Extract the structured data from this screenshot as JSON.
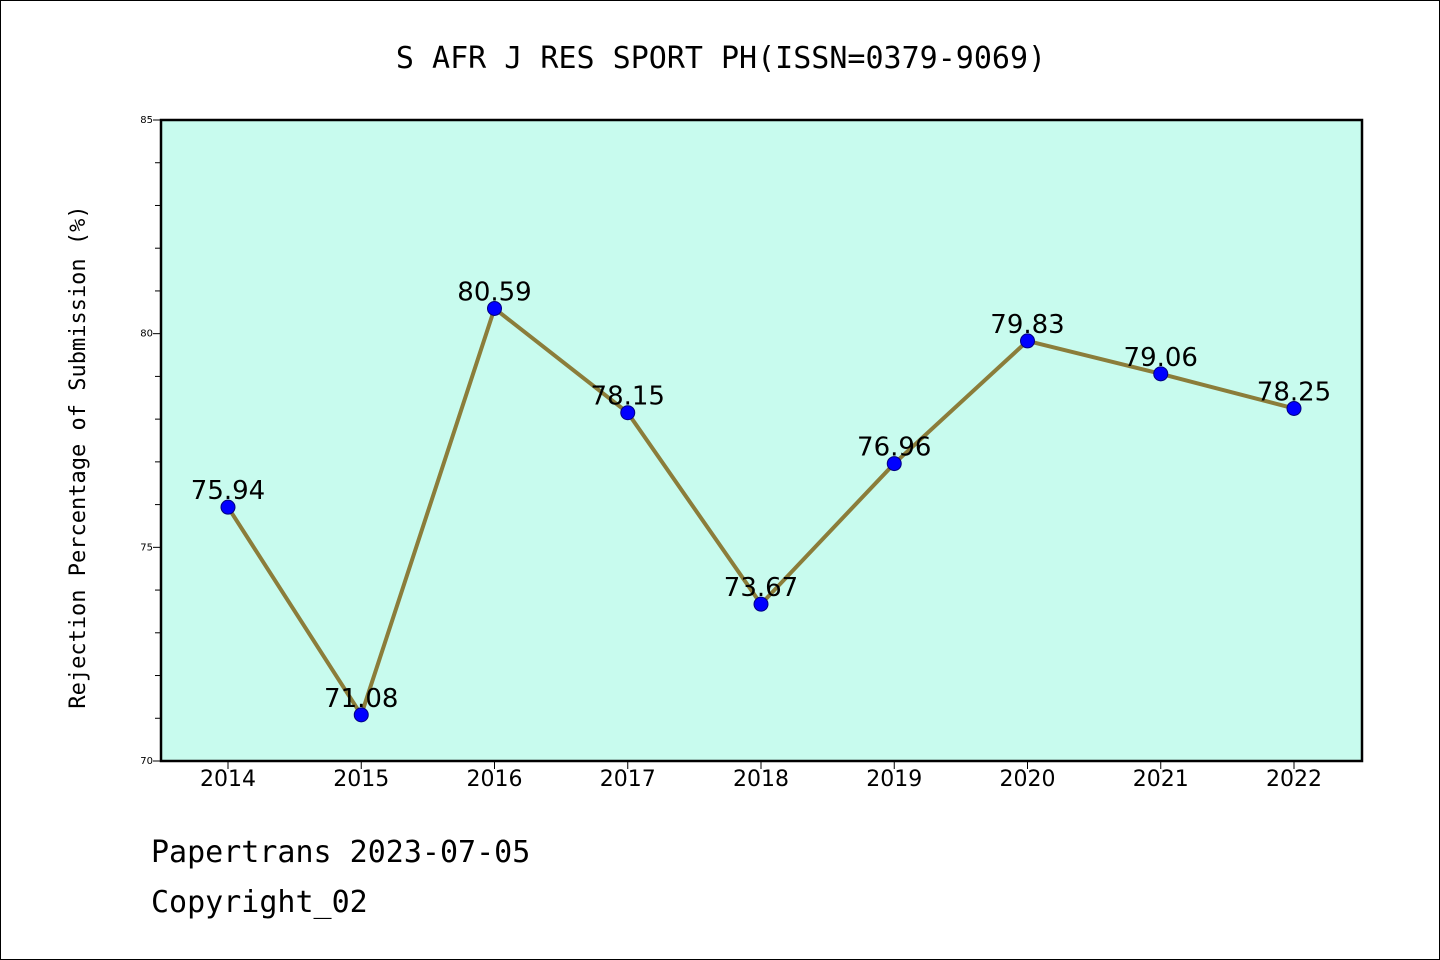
{
  "chart_data": {
    "type": "line",
    "title": "S AFR J RES SPORT PH(ISSN=0379-9069)",
    "xlabel": "",
    "ylabel": "Rejection Percentage of Submission (%)",
    "categories": [
      "2014",
      "2015",
      "2016",
      "2017",
      "2018",
      "2019",
      "2020",
      "2021",
      "2022"
    ],
    "series": [
      {
        "values": [
          75.94,
          71.08,
          80.59,
          78.15,
          73.67,
          76.96,
          79.83,
          79.06,
          78.25
        ],
        "data_labels": [
          "75.94",
          "71.08",
          "80.59",
          "78.15",
          "73.67",
          "76.96",
          "79.83",
          "79.06",
          "78.25"
        ]
      }
    ],
    "ylim": [
      70,
      85
    ],
    "yticks": [
      70,
      75,
      80,
      85
    ],
    "ytick_labels": [
      "70",
      "75",
      "80",
      "85"
    ],
    "minor_ytick_step": 1,
    "grid": false,
    "line_color": "#8b7d3a",
    "marker_color": "#0000ff",
    "plot_background": "#c8fbee"
  },
  "footer": {
    "line1": "Papertrans 2023-07-05",
    "line2": "Copyright_02"
  }
}
